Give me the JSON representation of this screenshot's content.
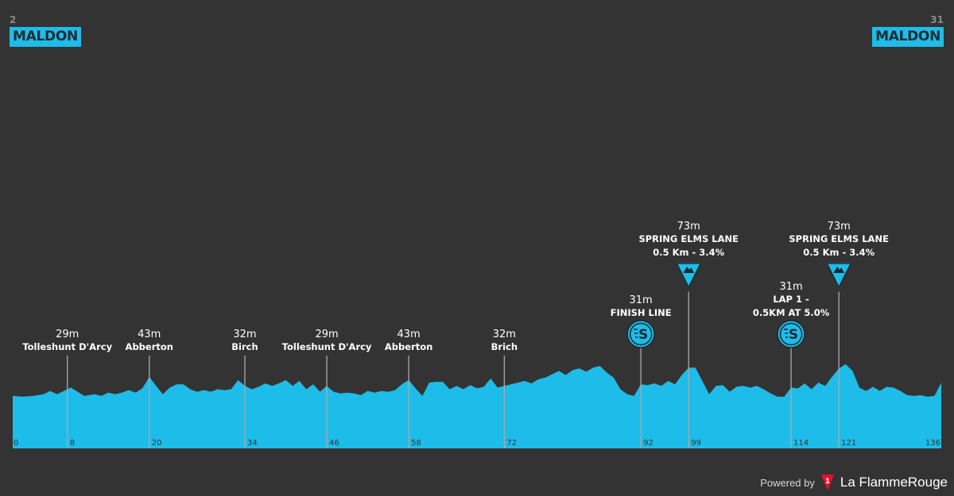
{
  "start": {
    "altitude": "2",
    "name": "MALDON"
  },
  "finish": {
    "altitude": "31",
    "name": "MALDON"
  },
  "footer": {
    "powered_label": "Powered by",
    "brand": "La FlammeRouge",
    "logo_glyph": "1"
  },
  "colors": {
    "background": "#333333",
    "profile": "#1ebce8",
    "badge": "#1ebce8",
    "marker": "#aaaaaa"
  },
  "chart_data": {
    "type": "area",
    "xlim": [
      0,
      136
    ],
    "ticks": [
      0,
      8,
      20,
      34,
      46,
      58,
      72,
      92,
      99,
      114,
      121,
      136
    ],
    "profile": [
      [
        0,
        2
      ],
      [
        1.5,
        1
      ],
      [
        3,
        2
      ],
      [
        4.5,
        4
      ],
      [
        5.5,
        8
      ],
      [
        6.5,
        4
      ],
      [
        7.5,
        8
      ],
      [
        8.5,
        12
      ],
      [
        9.5,
        7
      ],
      [
        10.5,
        2
      ],
      [
        12,
        4
      ],
      [
        13,
        2
      ],
      [
        14,
        6
      ],
      [
        15,
        4
      ],
      [
        16,
        6
      ],
      [
        17,
        9
      ],
      [
        18,
        6
      ],
      [
        19,
        11
      ],
      [
        20,
        25
      ],
      [
        21,
        14
      ],
      [
        22,
        4
      ],
      [
        23,
        12
      ],
      [
        24,
        16
      ],
      [
        25,
        16
      ],
      [
        26,
        10
      ],
      [
        27,
        7
      ],
      [
        28,
        9
      ],
      [
        29,
        7
      ],
      [
        30,
        10
      ],
      [
        31,
        9
      ],
      [
        32,
        10
      ],
      [
        33,
        21
      ],
      [
        34,
        14
      ],
      [
        35,
        10
      ],
      [
        36,
        13
      ],
      [
        37,
        17
      ],
      [
        38,
        14
      ],
      [
        39,
        17
      ],
      [
        40,
        21
      ],
      [
        41,
        14
      ],
      [
        42,
        20
      ],
      [
        43,
        10
      ],
      [
        44,
        16
      ],
      [
        45,
        7
      ],
      [
        46,
        14
      ],
      [
        47,
        7
      ],
      [
        48,
        5
      ],
      [
        49,
        6
      ],
      [
        50,
        5
      ],
      [
        51,
        3
      ],
      [
        52,
        8
      ],
      [
        53,
        6
      ],
      [
        54,
        8
      ],
      [
        55,
        7
      ],
      [
        56,
        9
      ],
      [
        57,
        16
      ],
      [
        58,
        21
      ],
      [
        59,
        11
      ],
      [
        60,
        2
      ],
      [
        61,
        18
      ],
      [
        62,
        19
      ],
      [
        63,
        19
      ],
      [
        64,
        10
      ],
      [
        65,
        14
      ],
      [
        66,
        10
      ],
      [
        67,
        15
      ],
      [
        68,
        11
      ],
      [
        69,
        13
      ],
      [
        70,
        23
      ],
      [
        71,
        12
      ],
      [
        72,
        14
      ],
      [
        73,
        16
      ],
      [
        74,
        18
      ],
      [
        75,
        20
      ],
      [
        76,
        17
      ],
      [
        77,
        22
      ],
      [
        78,
        24
      ],
      [
        79,
        28
      ],
      [
        80,
        32
      ],
      [
        81,
        27
      ],
      [
        82,
        33
      ],
      [
        83,
        35
      ],
      [
        84,
        31
      ],
      [
        85,
        36
      ],
      [
        86,
        38
      ],
      [
        87,
        30
      ],
      [
        88,
        24
      ],
      [
        89,
        10
      ],
      [
        90,
        4
      ],
      [
        91,
        2
      ],
      [
        92,
        16
      ],
      [
        93,
        15
      ],
      [
        94,
        17
      ],
      [
        95,
        14
      ],
      [
        96,
        20
      ],
      [
        97,
        16
      ],
      [
        98,
        27
      ],
      [
        99,
        36
      ],
      [
        100,
        36
      ],
      [
        101,
        20
      ],
      [
        102,
        4
      ],
      [
        103,
        14
      ],
      [
        104,
        15
      ],
      [
        105,
        7
      ],
      [
        106,
        13
      ],
      [
        107,
        14
      ],
      [
        108,
        12
      ],
      [
        109,
        14
      ],
      [
        110,
        10
      ],
      [
        111,
        5
      ],
      [
        112,
        1
      ],
      [
        113,
        1
      ],
      [
        114,
        12
      ],
      [
        115,
        11
      ],
      [
        116,
        17
      ],
      [
        117,
        10
      ],
      [
        118,
        18
      ],
      [
        119,
        14
      ],
      [
        120,
        25
      ],
      [
        121,
        35
      ],
      [
        122,
        40
      ],
      [
        123,
        32
      ],
      [
        124,
        12
      ],
      [
        125,
        8
      ],
      [
        126,
        13
      ],
      [
        127,
        8
      ],
      [
        128,
        13
      ],
      [
        129,
        12
      ],
      [
        130,
        8
      ],
      [
        131,
        3
      ],
      [
        132,
        2
      ],
      [
        133,
        3
      ],
      [
        134,
        1
      ],
      [
        135,
        2
      ],
      [
        136,
        18
      ]
    ],
    "points": [
      {
        "km": 8,
        "altitude": "29m",
        "lines": [
          "Tolleshunt D'Arcy"
        ]
      },
      {
        "km": 20,
        "altitude": "43m",
        "lines": [
          "Abberton"
        ]
      },
      {
        "km": 34,
        "altitude": "32m",
        "lines": [
          "Birch"
        ]
      },
      {
        "km": 46,
        "altitude": "29m",
        "lines": [
          "Tolleshunt D'Arcy"
        ]
      },
      {
        "km": 58,
        "altitude": "43m",
        "lines": [
          "Abberton"
        ]
      },
      {
        "km": 72,
        "altitude": "32m",
        "lines": [
          "Brich"
        ]
      },
      {
        "km": 92,
        "altitude": "31m",
        "lines": [
          "FINISH LINE"
        ],
        "icon": "sprint-icon"
      },
      {
        "km": 99,
        "altitude": "73m",
        "lines": [
          "SPRING ELMS LANE",
          "0.5 Km - 3.4%"
        ],
        "icon": "climb-icon"
      },
      {
        "km": 114,
        "altitude": "31m",
        "lines": [
          "LAP 1 -",
          "0.5KM AT 5.0%"
        ],
        "icon": "sprint-icon"
      },
      {
        "km": 121,
        "altitude": "73m",
        "lines": [
          "SPRING ELMS LANE",
          "0.5 Km - 3.4%"
        ],
        "icon": "climb-icon"
      }
    ]
  }
}
